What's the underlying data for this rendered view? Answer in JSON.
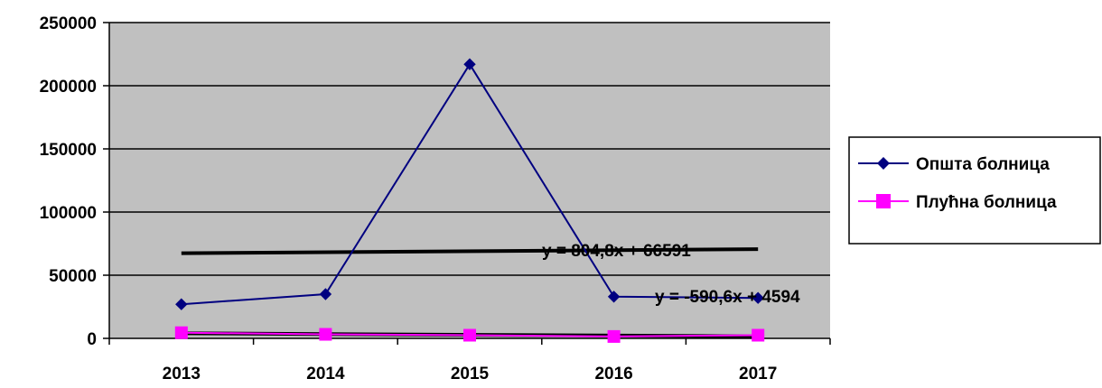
{
  "chart_data": {
    "type": "line",
    "title": "",
    "xlabel": "",
    "ylabel": "",
    "categories": [
      "2013",
      "2014",
      "2015",
      "2016",
      "2017"
    ],
    "ylim": [
      0,
      250000
    ],
    "y_ticks": [
      "0",
      "50000",
      "100000",
      "150000",
      "200000",
      "250000"
    ],
    "grid": "horizontal",
    "plot_background": "#c0c0c0",
    "legend_position": "right",
    "series": [
      {
        "name": "Општа болница",
        "values": [
          27000,
          35000,
          217000,
          33000,
          32000
        ],
        "color": "#000080",
        "marker": "diamond"
      },
      {
        "name": "Плућна болница",
        "values": [
          4500,
          3200,
          2500,
          1500,
          2500
        ],
        "color": "#ff00ff",
        "marker": "square"
      }
    ],
    "trendlines": [
      {
        "series": 0,
        "equation": "y = 804,8x + 66591",
        "slope": 804.8,
        "intercept": 66591,
        "color": "#000000"
      },
      {
        "series": 1,
        "equation": "y = -590,6x + 4594",
        "slope": -590.6,
        "intercept": 4594,
        "color": "#000000"
      }
    ]
  }
}
